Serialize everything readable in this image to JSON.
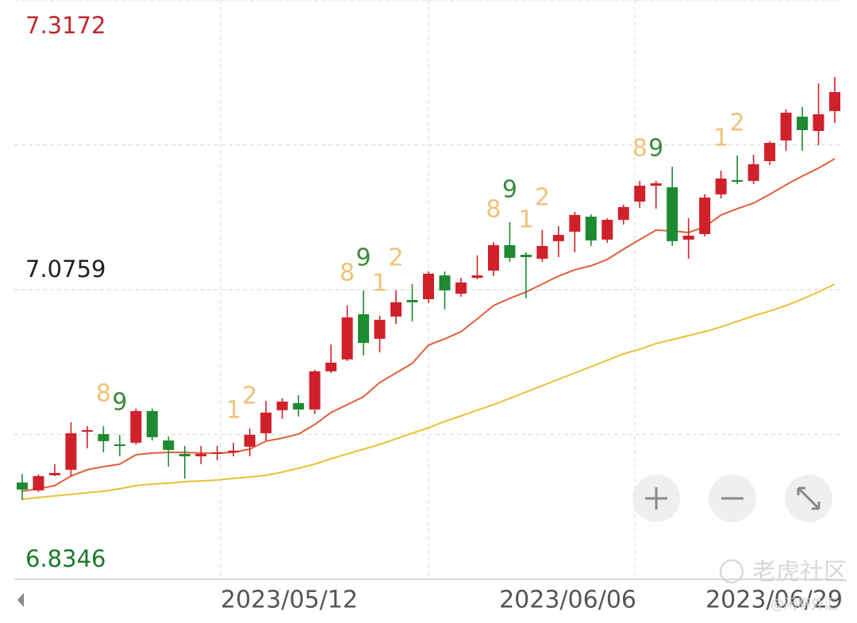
{
  "chart_data": {
    "type": "candlestick",
    "ylim": [
      6.8346,
      7.3172
    ],
    "yticks": [
      6.8346,
      7.0759,
      7.3172
    ],
    "ytick_colors": [
      "#1a7a2a",
      "#222222",
      "#c0282d"
    ],
    "grid": true,
    "up_color": "#d0202a",
    "down_color": "#1e8a32",
    "open": [
      6.9153,
      6.9087,
      6.9213,
      6.9259,
      6.9576,
      6.9556,
      6.947,
      6.9484,
      6.9748,
      6.9503,
      6.9391,
      6.9371,
      6.9391,
      6.9404,
      6.9451,
      6.9563,
      6.9755,
      6.9814,
      6.9761,
      7.0079,
      7.0178,
      7.0554,
      7.035,
      7.0535,
      7.0673,
      7.068,
      7.0878,
      7.0726,
      7.0858,
      7.0918,
      7.113,
      7.105,
      7.1017,
      7.1163,
      7.1242,
      7.1367,
      7.1176,
      7.1341,
      7.1493,
      7.1625,
      7.1612,
      7.1176,
      7.1222,
      7.1553,
      7.1672,
      7.1665,
      7.183,
      7.2002,
      7.22,
      7.2081,
      7.2247
    ],
    "high": [
      6.9226,
      6.9219,
      6.9305,
      6.9655,
      6.9622,
      6.9622,
      6.955,
      6.9768,
      6.9768,
      6.9536,
      6.9457,
      6.9457,
      6.9457,
      6.9484,
      6.9603,
      6.9834,
      6.9854,
      6.988,
      7.0092,
      7.0303,
      7.0627,
      7.0753,
      7.0541,
      7.0753,
      7.0806,
      7.0911,
      7.0911,
      7.0858,
      7.1044,
      7.1156,
      7.1321,
      7.107,
      7.1255,
      7.1288,
      7.1407,
      7.1387,
      7.1354,
      7.1467,
      7.1665,
      7.1665,
      7.1784,
      7.1354,
      7.1553,
      7.1751,
      7.1876,
      7.1883,
      7.1995,
      7.226,
      7.228,
      7.2478,
      7.2531
    ],
    "low": [
      6.9008,
      6.9074,
      6.9206,
      6.9206,
      6.9437,
      6.9404,
      6.9371,
      6.947,
      6.9503,
      6.9285,
      6.9186,
      6.9305,
      6.9338,
      6.9371,
      6.9371,
      6.9503,
      6.9682,
      6.9702,
      6.9722,
      7.0065,
      7.0164,
      7.0211,
      7.0237,
      7.0475,
      7.0495,
      7.0647,
      7.0594,
      7.07,
      7.0845,
      7.0872,
      7.0991,
      7.0687,
      7.0991,
      7.103,
      7.107,
      7.1123,
      7.1149,
      7.1301,
      7.144,
      7.1434,
      7.1123,
      7.1017,
      7.1202,
      7.1519,
      7.1638,
      7.1638,
      7.1797,
      7.1916,
      7.1916,
      7.1962,
      7.2147
    ],
    "close": [
      6.9094,
      6.9206,
      6.9232,
      6.9563,
      6.9589,
      6.9497,
      6.9457,
      6.9748,
      6.953,
      6.9424,
      6.9371,
      6.9391,
      6.9404,
      6.9418,
      6.955,
      6.9735,
      6.9827,
      6.9761,
      7.0079,
      7.0151,
      7.0528,
      7.0316,
      7.0508,
      7.0654,
      7.0654,
      7.0892,
      7.0753,
      7.0819,
      7.0878,
      7.113,
      7.1024,
      7.103,
      7.1123,
      7.1215,
      7.1381,
      7.1169,
      7.1341,
      7.1447,
      7.1625,
      7.1645,
      7.1163,
      7.1209,
      7.1526,
      7.1685,
      7.1658,
      7.1804,
      7.1982,
      7.2233,
      7.2088,
      7.222,
      7.2405
    ],
    "moving_averages": [
      {
        "color": "#e0603a",
        "values": [
          6.908,
          6.91,
          6.9127,
          6.9206,
          6.9259,
          6.9285,
          6.9305,
          6.9384,
          6.9398,
          6.9404,
          6.9404,
          6.9398,
          6.9398,
          6.9404,
          6.9431,
          6.9497,
          6.9523,
          6.9556,
          6.9636,
          6.9735,
          6.9801,
          6.9867,
          6.9986,
          7.0065,
          7.0145,
          7.0297,
          7.035,
          7.0409,
          7.0515,
          7.0627,
          7.0687,
          7.074,
          7.0806,
          7.0872,
          7.0925,
          7.0958,
          7.1011,
          7.1096,
          7.1176,
          7.1255,
          7.1248,
          7.1235,
          7.1282,
          7.1381,
          7.1434,
          7.148,
          7.1553,
          7.1632,
          7.1705,
          7.1771,
          7.185
        ]
      },
      {
        "color": "#e8c234",
        "values": [
          6.9014,
          6.9028,
          6.9041,
          6.9054,
          6.9067,
          6.908,
          6.91,
          6.9127,
          6.914,
          6.9147,
          6.916,
          6.9166,
          6.9173,
          6.9186,
          6.9199,
          6.9213,
          6.9239,
          6.9272,
          6.9305,
          6.9351,
          6.9391,
          6.9431,
          6.947,
          6.9517,
          6.9563,
          6.9609,
          6.9662,
          6.9708,
          6.9755,
          6.9801,
          6.9854,
          6.9907,
          6.996,
          7.0012,
          7.0065,
          7.0118,
          7.0171,
          7.0224,
          7.0264,
          7.031,
          7.0343,
          7.0376,
          7.0409,
          7.0449,
          7.0495,
          7.0541,
          7.0581,
          7.0627,
          7.068,
          7.074,
          7.0806
        ]
      }
    ],
    "annotations": [
      {
        "index": 5,
        "text": "8",
        "color": "#f0c27a"
      },
      {
        "index": 6,
        "text": "9",
        "color": "#3a8a3a"
      },
      {
        "index": 13,
        "text": "1",
        "color": "#f0c27a"
      },
      {
        "index": 14,
        "text": "2",
        "color": "#f0c27a"
      },
      {
        "index": 20,
        "text": "8",
        "color": "#f0c27a"
      },
      {
        "index": 21,
        "text": "9",
        "color": "#3a8a3a"
      },
      {
        "index": 22,
        "text": "1",
        "color": "#f0c27a"
      },
      {
        "index": 23,
        "text": "2",
        "color": "#f0c27a"
      },
      {
        "index": 29,
        "text": "8",
        "color": "#f0c27a"
      },
      {
        "index": 30,
        "text": "9",
        "color": "#3a8a3a"
      },
      {
        "index": 31,
        "text": "1",
        "color": "#f0c27a"
      },
      {
        "index": 32,
        "text": "2",
        "color": "#f0c27a"
      },
      {
        "index": 38,
        "text": "8",
        "color": "#f0c27a"
      },
      {
        "index": 39,
        "text": "9",
        "color": "#3a8a3a"
      },
      {
        "index": 43,
        "text": "1",
        "color": "#f0c27a"
      },
      {
        "index": 44,
        "text": "2",
        "color": "#f0c27a"
      }
    ],
    "x_labels": [
      "2023/05/12",
      "2023/06/06",
      "2023/06/29"
    ],
    "watermark": "老虎社区",
    "watermark_sub": "@闲聊外汇"
  }
}
